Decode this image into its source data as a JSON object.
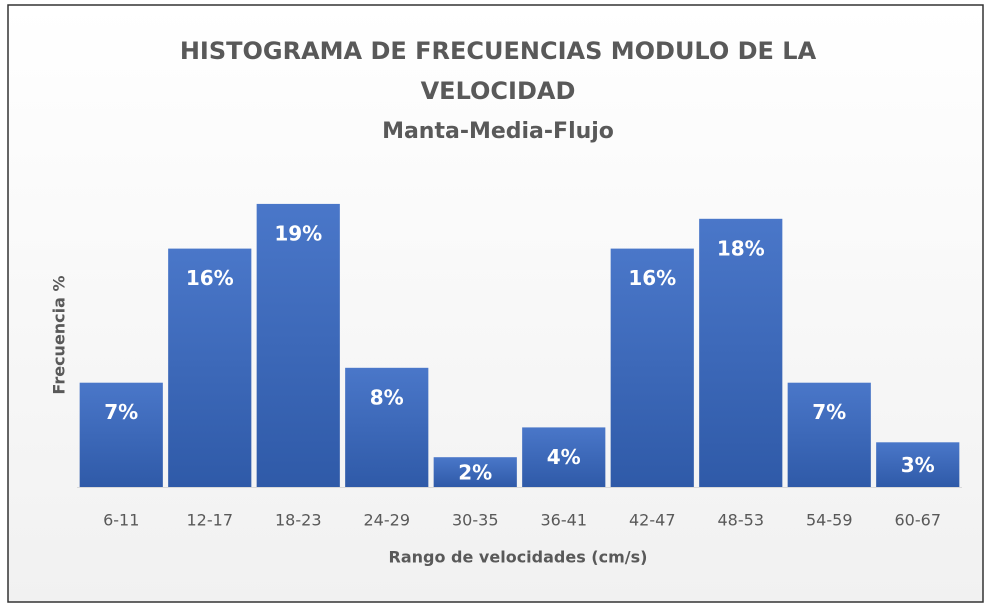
{
  "chart_data": {
    "type": "bar",
    "title": [
      "HISTOGRAMA DE FRECUENCIAS MODULO DE LA",
      "VELOCIDAD"
    ],
    "subtitle": "Manta-Media-Flujo",
    "xlabel": "Rango de velocidades (cm/s)",
    "ylabel": "Frecuencia %",
    "categories": [
      "6-11",
      "12-17",
      "18-23",
      "24-29",
      "30-35",
      "36-41",
      "42-47",
      "48-53",
      "54-59",
      "60-67"
    ],
    "values": [
      7,
      16,
      19,
      8,
      2,
      4,
      16,
      18,
      7,
      3
    ],
    "value_labels": [
      "7%",
      "16%",
      "19%",
      "8%",
      "2%",
      "4%",
      "16%",
      "18%",
      "7%",
      "3%"
    ],
    "color": "#4472c4"
  }
}
